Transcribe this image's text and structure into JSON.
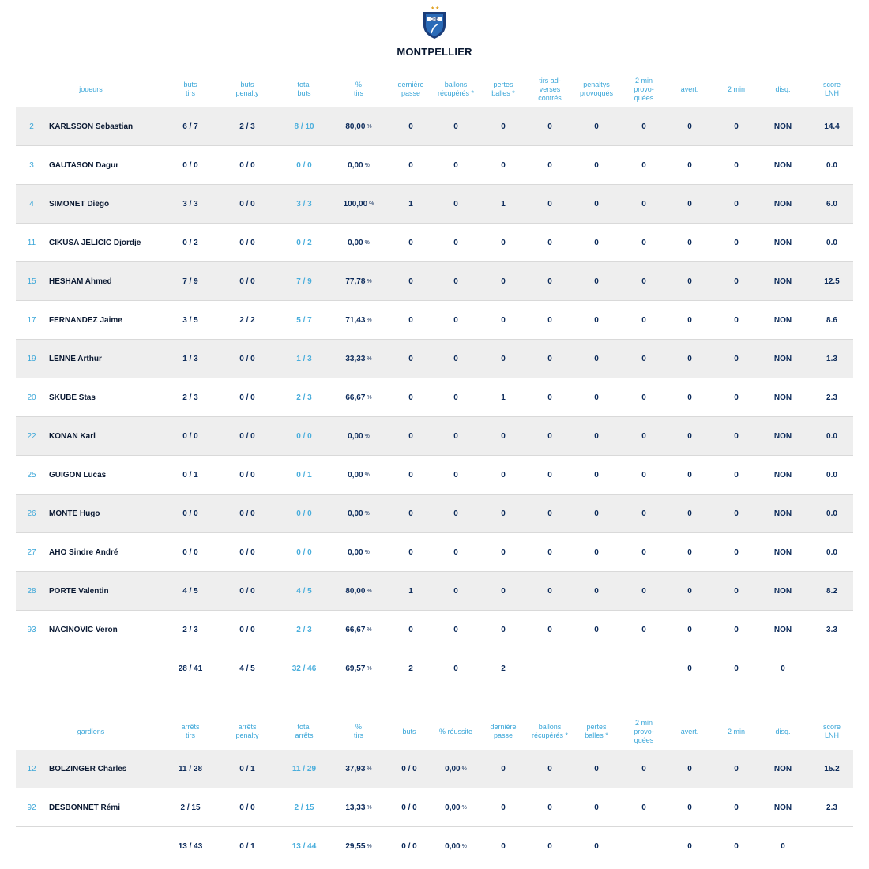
{
  "team": {
    "name": "MONTPELLIER",
    "logo_icon": "shield-logo-icon",
    "logo_text": "CHB"
  },
  "colors": {
    "accent": "#3aa6d8",
    "dark_text": "#0b2a5a",
    "row_shade": "#eeeeee"
  },
  "players": {
    "headers": [
      [
        "joueurs"
      ],
      [
        "buts",
        "tirs"
      ],
      [
        "buts",
        "penalty"
      ],
      [
        "total",
        "buts"
      ],
      [
        "%",
        "tirs"
      ],
      [
        "dernière",
        "passe"
      ],
      [
        "ballons",
        "récupérés *"
      ],
      [
        "pertes",
        "balles *"
      ],
      [
        "tirs ad-",
        "verses",
        "contrés"
      ],
      [
        "penaltys",
        "provoqués"
      ],
      [
        "2 min",
        "provo-",
        "quées"
      ],
      [
        "avert."
      ],
      [
        "2 min"
      ],
      [
        "disq."
      ],
      [
        "score",
        "LNH"
      ]
    ],
    "rows": [
      {
        "num": "2",
        "name": "KARLSSON Sebastian",
        "buts_tirs": "6 / 7",
        "buts_penalty": "2 / 3",
        "total_buts": "8 / 10",
        "pct": "80,00",
        "derniere_passe": "0",
        "ballons": "0",
        "pertes": "0",
        "tirs_contres": "0",
        "penaltys": "0",
        "deux_min_prov": "0",
        "avert": "0",
        "deux_min": "0",
        "disq": "NON",
        "score": "14.4"
      },
      {
        "num": "3",
        "name": "GAUTASON Dagur",
        "buts_tirs": "0 / 0",
        "buts_penalty": "0 / 0",
        "total_buts": "0 / 0",
        "pct": "0,00",
        "derniere_passe": "0",
        "ballons": "0",
        "pertes": "0",
        "tirs_contres": "0",
        "penaltys": "0",
        "deux_min_prov": "0",
        "avert": "0",
        "deux_min": "0",
        "disq": "NON",
        "score": "0.0"
      },
      {
        "num": "4",
        "name": "SIMONET Diego",
        "buts_tirs": "3 / 3",
        "buts_penalty": "0 / 0",
        "total_buts": "3 / 3",
        "pct": "100,00",
        "derniere_passe": "1",
        "ballons": "0",
        "pertes": "1",
        "tirs_contres": "0",
        "penaltys": "0",
        "deux_min_prov": "0",
        "avert": "0",
        "deux_min": "0",
        "disq": "NON",
        "score": "6.0"
      },
      {
        "num": "11",
        "name": "CIKUSA JELICIC Djordje",
        "buts_tirs": "0 / 2",
        "buts_penalty": "0 / 0",
        "total_buts": "0 / 2",
        "pct": "0,00",
        "derniere_passe": "0",
        "ballons": "0",
        "pertes": "0",
        "tirs_contres": "0",
        "penaltys": "0",
        "deux_min_prov": "0",
        "avert": "0",
        "deux_min": "0",
        "disq": "NON",
        "score": "0.0"
      },
      {
        "num": "15",
        "name": "HESHAM Ahmed",
        "buts_tirs": "7 / 9",
        "buts_penalty": "0 / 0",
        "total_buts": "7 / 9",
        "pct": "77,78",
        "derniere_passe": "0",
        "ballons": "0",
        "pertes": "0",
        "tirs_contres": "0",
        "penaltys": "0",
        "deux_min_prov": "0",
        "avert": "0",
        "deux_min": "0",
        "disq": "NON",
        "score": "12.5"
      },
      {
        "num": "17",
        "name": "FERNANDEZ Jaime",
        "buts_tirs": "3 / 5",
        "buts_penalty": "2 / 2",
        "total_buts": "5 / 7",
        "pct": "71,43",
        "derniere_passe": "0",
        "ballons": "0",
        "pertes": "0",
        "tirs_contres": "0",
        "penaltys": "0",
        "deux_min_prov": "0",
        "avert": "0",
        "deux_min": "0",
        "disq": "NON",
        "score": "8.6"
      },
      {
        "num": "19",
        "name": "LENNE Arthur",
        "buts_tirs": "1 / 3",
        "buts_penalty": "0 / 0",
        "total_buts": "1 / 3",
        "pct": "33,33",
        "derniere_passe": "0",
        "ballons": "0",
        "pertes": "0",
        "tirs_contres": "0",
        "penaltys": "0",
        "deux_min_prov": "0",
        "avert": "0",
        "deux_min": "0",
        "disq": "NON",
        "score": "1.3"
      },
      {
        "num": "20",
        "name": "SKUBE Stas",
        "buts_tirs": "2 / 3",
        "buts_penalty": "0 / 0",
        "total_buts": "2 / 3",
        "pct": "66,67",
        "derniere_passe": "0",
        "ballons": "0",
        "pertes": "1",
        "tirs_contres": "0",
        "penaltys": "0",
        "deux_min_prov": "0",
        "avert": "0",
        "deux_min": "0",
        "disq": "NON",
        "score": "2.3"
      },
      {
        "num": "22",
        "name": "KONAN Karl",
        "buts_tirs": "0 / 0",
        "buts_penalty": "0 / 0",
        "total_buts": "0 / 0",
        "pct": "0,00",
        "derniere_passe": "0",
        "ballons": "0",
        "pertes": "0",
        "tirs_contres": "0",
        "penaltys": "0",
        "deux_min_prov": "0",
        "avert": "0",
        "deux_min": "0",
        "disq": "NON",
        "score": "0.0"
      },
      {
        "num": "25",
        "name": "GUIGON Lucas",
        "buts_tirs": "0 / 1",
        "buts_penalty": "0 / 0",
        "total_buts": "0 / 1",
        "pct": "0,00",
        "derniere_passe": "0",
        "ballons": "0",
        "pertes": "0",
        "tirs_contres": "0",
        "penaltys": "0",
        "deux_min_prov": "0",
        "avert": "0",
        "deux_min": "0",
        "disq": "NON",
        "score": "0.0"
      },
      {
        "num": "26",
        "name": "MONTE Hugo",
        "buts_tirs": "0 / 0",
        "buts_penalty": "0 / 0",
        "total_buts": "0 / 0",
        "pct": "0,00",
        "derniere_passe": "0",
        "ballons": "0",
        "pertes": "0",
        "tirs_contres": "0",
        "penaltys": "0",
        "deux_min_prov": "0",
        "avert": "0",
        "deux_min": "0",
        "disq": "NON",
        "score": "0.0"
      },
      {
        "num": "27",
        "name": "AHO Sindre André",
        "buts_tirs": "0 / 0",
        "buts_penalty": "0 / 0",
        "total_buts": "0 / 0",
        "pct": "0,00",
        "derniere_passe": "0",
        "ballons": "0",
        "pertes": "0",
        "tirs_contres": "0",
        "penaltys": "0",
        "deux_min_prov": "0",
        "avert": "0",
        "deux_min": "0",
        "disq": "NON",
        "score": "0.0"
      },
      {
        "num": "28",
        "name": "PORTE Valentin",
        "buts_tirs": "4 / 5",
        "buts_penalty": "0 / 0",
        "total_buts": "4 / 5",
        "pct": "80,00",
        "derniere_passe": "1",
        "ballons": "0",
        "pertes": "0",
        "tirs_contres": "0",
        "penaltys": "0",
        "deux_min_prov": "0",
        "avert": "0",
        "deux_min": "0",
        "disq": "NON",
        "score": "8.2"
      },
      {
        "num": "93",
        "name": "NACINOVIC Veron",
        "buts_tirs": "2 / 3",
        "buts_penalty": "0 / 0",
        "total_buts": "2 / 3",
        "pct": "66,67",
        "derniere_passe": "0",
        "ballons": "0",
        "pertes": "0",
        "tirs_contres": "0",
        "penaltys": "0",
        "deux_min_prov": "0",
        "avert": "0",
        "deux_min": "0",
        "disq": "NON",
        "score": "3.3"
      }
    ],
    "totals": {
      "buts_tirs": "28 / 41",
      "buts_penalty": "4 / 5",
      "total_buts": "32 / 46",
      "pct": "69,57",
      "derniere_passe": "2",
      "ballons": "0",
      "pertes": "2",
      "avert": "0",
      "deux_min": "0",
      "disq": "0"
    }
  },
  "goalkeepers": {
    "headers": [
      [
        "gardiens"
      ],
      [
        "arrêts",
        "tirs"
      ],
      [
        "arrêts",
        "penalty"
      ],
      [
        "total",
        "arrêts"
      ],
      [
        "%",
        "tirs"
      ],
      [
        "buts"
      ],
      [
        "% réussite"
      ],
      [
        "dernière",
        "passe"
      ],
      [
        "ballons",
        "récupérés *"
      ],
      [
        "pertes",
        "balles *"
      ],
      [
        "2 min",
        "provo-",
        "quées"
      ],
      [
        "avert."
      ],
      [
        "2 min"
      ],
      [
        "disq."
      ],
      [
        "score",
        "LNH"
      ]
    ],
    "rows": [
      {
        "num": "12",
        "name": "BOLZINGER Charles",
        "arrets_tirs": "11 / 28",
        "arrets_penalty": "0 / 1",
        "total_arrets": "11 / 29",
        "pct": "37,93",
        "buts": "0 / 0",
        "reussite": "0,00",
        "derniere_passe": "0",
        "ballons": "0",
        "pertes": "0",
        "deux_min_prov": "0",
        "avert": "0",
        "deux_min": "0",
        "disq": "NON",
        "score": "15.2"
      },
      {
        "num": "92",
        "name": "DESBONNET Rémi",
        "arrets_tirs": "2 / 15",
        "arrets_penalty": "0 / 0",
        "total_arrets": "2 / 15",
        "pct": "13,33",
        "buts": "0 / 0",
        "reussite": "0,00",
        "derniere_passe": "0",
        "ballons": "0",
        "pertes": "0",
        "deux_min_prov": "0",
        "avert": "0",
        "deux_min": "0",
        "disq": "NON",
        "score": "2.3"
      }
    ],
    "totals": {
      "arrets_tirs": "13 / 43",
      "arrets_penalty": "0 / 1",
      "total_arrets": "13 / 44",
      "pct": "29,55",
      "buts": "0 / 0",
      "reussite": "0,00",
      "derniere_passe": "0",
      "ballons": "0",
      "pertes": "0",
      "avert": "0",
      "deux_min": "0",
      "disq": "0"
    }
  },
  "units": {
    "pct_sign": "%"
  }
}
